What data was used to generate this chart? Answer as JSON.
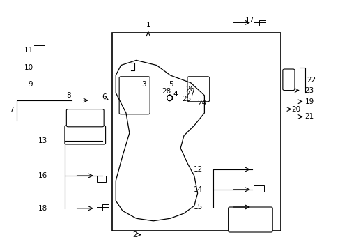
{
  "bg_color": "#ffffff",
  "line_color": "#000000",
  "text_color": "#000000",
  "fs": 7.5
}
